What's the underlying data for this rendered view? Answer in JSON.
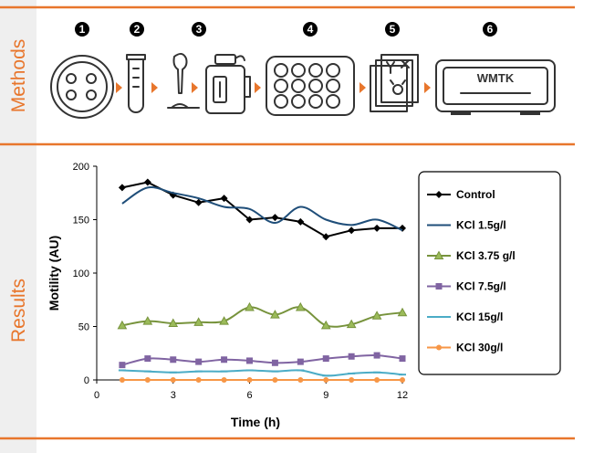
{
  "sections": {
    "methods_label": "Methods",
    "results_label": "Results"
  },
  "steps": [
    {
      "number": "1",
      "icon": "petri-dish-icon"
    },
    {
      "number": "2",
      "icon": "test-tube-icon"
    },
    {
      "number": "3",
      "icon": "pipette-slide-icon"
    },
    {
      "number": "4",
      "icon": "jar-icon"
    },
    {
      "number": "5",
      "icon": "well-plate-icon"
    },
    {
      "number": "6",
      "icon": "stacked-papers-icon"
    },
    {
      "number": "",
      "icon": "wmtk-device-icon"
    }
  ],
  "device_label": "WMTK",
  "accent_color": "#e8762c",
  "chart_data": {
    "type": "line",
    "xlabel": "Time (h)",
    "ylabel": "Motility (AU)",
    "xlim": [
      0,
      12
    ],
    "ylim": [
      0,
      200
    ],
    "xticks": [
      0,
      3,
      6,
      9,
      12
    ],
    "yticks": [
      0,
      50,
      100,
      150,
      200
    ],
    "grid": false,
    "legend_position": "right",
    "series": [
      {
        "name": "Control",
        "color": "#000000",
        "marker": "diamond",
        "smooth": false,
        "x": [
          1,
          2,
          3,
          4,
          5,
          6,
          7,
          8,
          9,
          10,
          11,
          12
        ],
        "y": [
          180,
          185,
          173,
          166,
          170,
          150,
          152,
          148,
          134,
          140,
          142,
          142
        ]
      },
      {
        "name": "KCl 1.5g/l",
        "color": "#1f4e79",
        "marker": "none",
        "smooth": true,
        "x": [
          1,
          2,
          3,
          4,
          5,
          6,
          7,
          8,
          9,
          10,
          11,
          12
        ],
        "y": [
          165,
          180,
          175,
          170,
          162,
          160,
          147,
          162,
          150,
          145,
          150,
          140
        ]
      },
      {
        "name": "KCl 3.75 g/l",
        "color": "#77933c",
        "marker": "triangle",
        "smooth": true,
        "x": [
          1,
          2,
          3,
          4,
          5,
          6,
          7,
          8,
          9,
          10,
          11,
          12
        ],
        "y": [
          51,
          55,
          53,
          54,
          55,
          68,
          61,
          68,
          51,
          52,
          60,
          63
        ]
      },
      {
        "name": "KCl 7.5g/l",
        "color": "#8064a2",
        "marker": "square",
        "smooth": true,
        "x": [
          1,
          2,
          3,
          4,
          5,
          6,
          7,
          8,
          9,
          10,
          11,
          12
        ],
        "y": [
          14,
          20,
          19,
          17,
          19,
          18,
          16,
          17,
          20,
          22,
          23,
          20
        ]
      },
      {
        "name": "KCl 15g/l",
        "color": "#4bacc6",
        "marker": "dash",
        "smooth": true,
        "x": [
          1,
          2,
          3,
          4,
          5,
          6,
          7,
          8,
          9,
          10,
          11,
          12
        ],
        "y": [
          9,
          8,
          7,
          8,
          8,
          9,
          8,
          9,
          4,
          6,
          7,
          5
        ]
      },
      {
        "name": "KCl 30g/l",
        "color": "#f79646",
        "marker": "circle",
        "smooth": false,
        "x": [
          1,
          2,
          3,
          4,
          5,
          6,
          7,
          8,
          9,
          10,
          11,
          12
        ],
        "y": [
          0,
          0,
          0,
          0,
          0,
          0,
          0,
          0,
          0,
          0,
          0,
          0
        ]
      }
    ]
  }
}
